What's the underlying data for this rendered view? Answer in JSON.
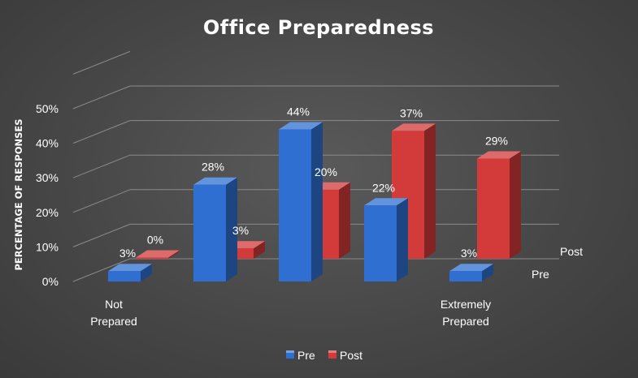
{
  "chart_data": {
    "type": "bar",
    "title": "Office Preparedness",
    "ylabel": "PERCENTAGE OF RESPONSES",
    "xlabel": "",
    "ylim": [
      0,
      50
    ],
    "yticks": [
      "0%",
      "10%",
      "20%",
      "30%",
      "40%",
      "50%"
    ],
    "categories": [
      "Not Prepared",
      "",
      "",
      "",
      "Extremely Prepared"
    ],
    "category_labels": [
      [
        "Not",
        "Prepared"
      ],
      [],
      [],
      [],
      [
        "Extremely",
        "Prepared"
      ]
    ],
    "series": [
      {
        "name": "Pre",
        "values": [
          3,
          28,
          44,
          22,
          3
        ],
        "labels": [
          "3%",
          "28%",
          "44%",
          "22%",
          "3%"
        ],
        "color": "#2e6fd1"
      },
      {
        "name": "Post",
        "values": [
          0,
          3,
          20,
          37,
          29
        ],
        "labels": [
          "0%",
          "3%",
          "20%",
          "37%",
          "29%"
        ],
        "color": "#d33a3a"
      }
    ],
    "depth_axis_labels": [
      "Pre",
      "Post"
    ],
    "legend_position": "bottom",
    "grid": true,
    "style": "3d-column"
  }
}
